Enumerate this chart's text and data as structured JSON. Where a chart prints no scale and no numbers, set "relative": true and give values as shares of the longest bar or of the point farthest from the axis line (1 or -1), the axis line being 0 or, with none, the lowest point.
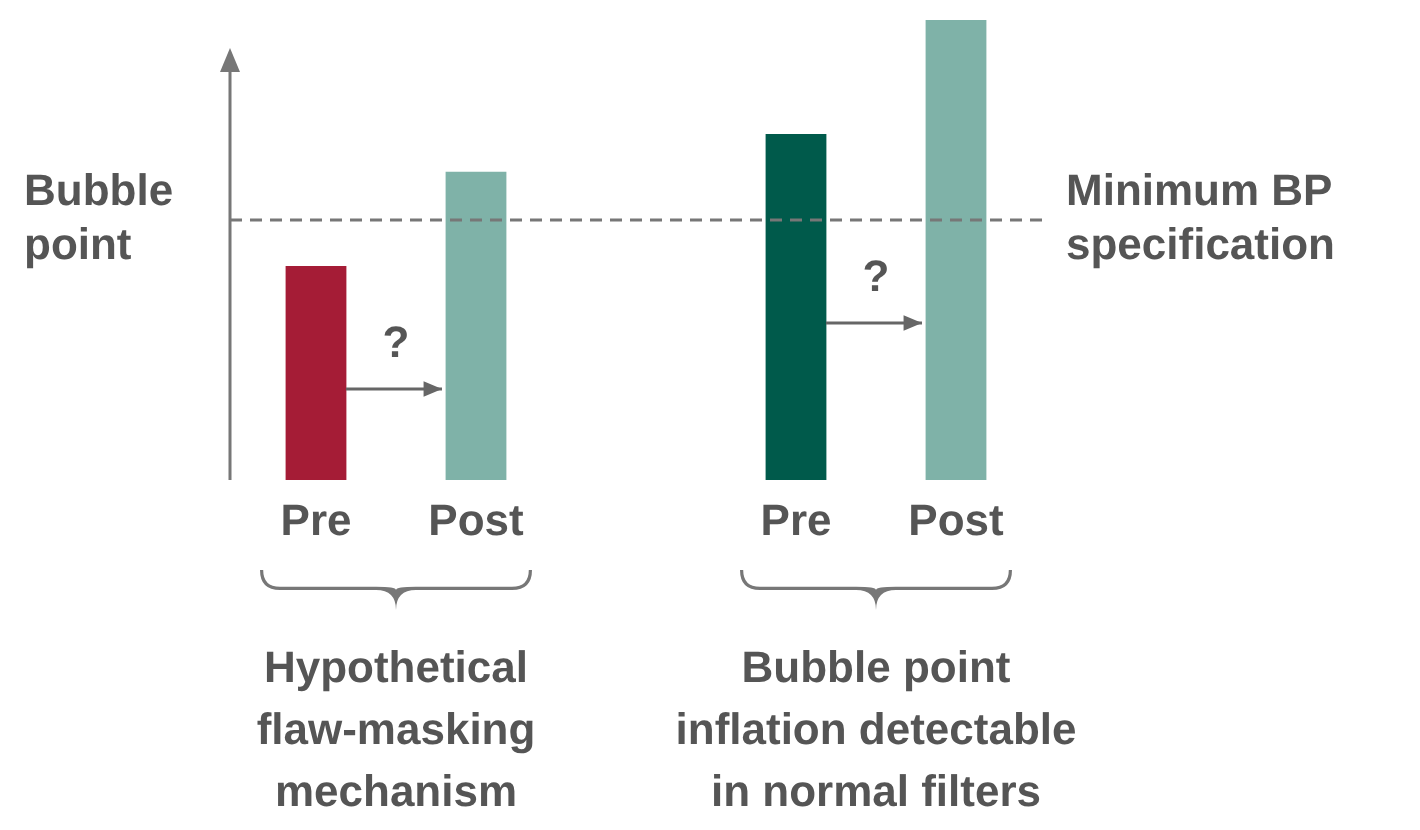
{
  "chart_data": {
    "type": "bar",
    "relative": true,
    "ylabel": "Bubble point",
    "categories": [
      "Pre",
      "Post",
      null,
      "Pre",
      "Post"
    ],
    "values": [
      0.465,
      0.67,
      null,
      0.752,
      1
    ],
    "colors": [
      "#a51c36",
      "#7fb2a8",
      "#7fb2a8",
      "#005a4b",
      "#7fb2a8"
    ],
    "ref_lines": [
      {
        "axis": "y",
        "value": 0.565,
        "label": "Minimum BP specification",
        "color": "#777777",
        "line_style": "dashed"
      }
    ],
    "annotations": [
      "?",
      "?",
      "Hypothetical flaw-masking mechanism",
      "Bubble point inflation detectable in normal filters"
    ],
    "legend": false,
    "grid": false
  }
}
